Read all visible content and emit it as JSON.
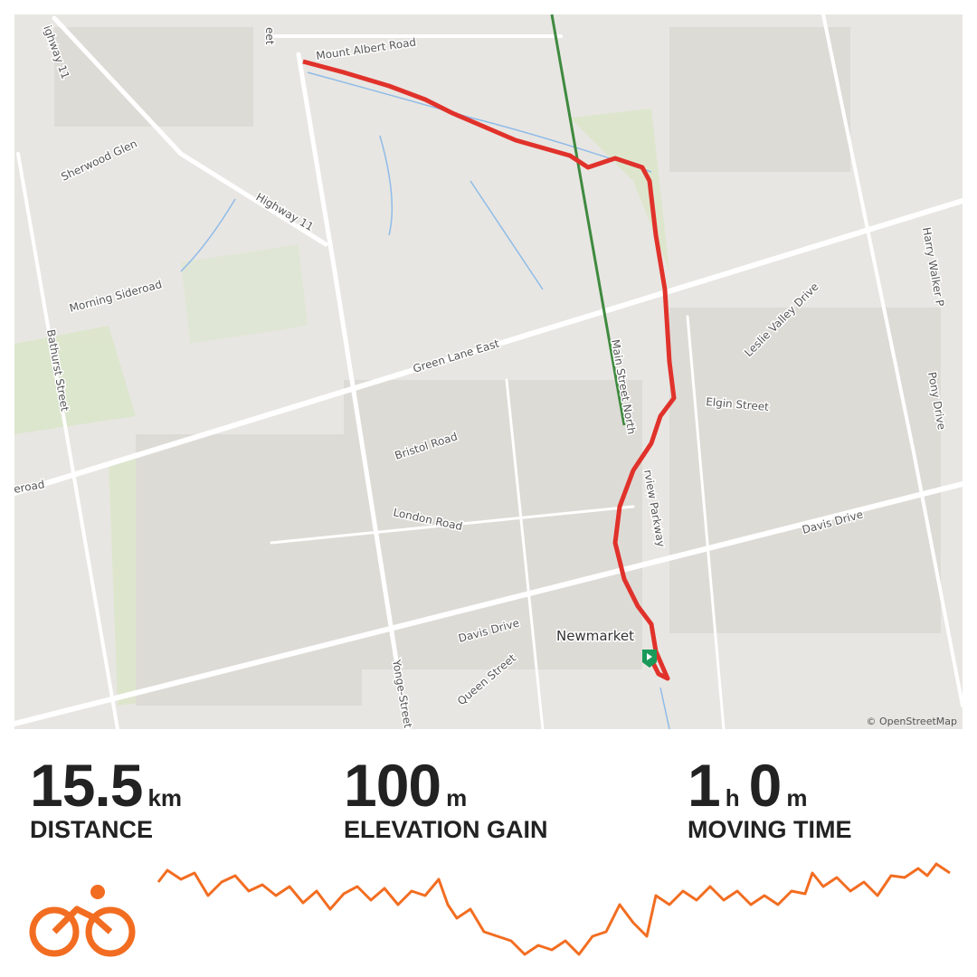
{
  "map": {
    "labels": [
      "Mount Albert Road",
      "ighway 11",
      "eet",
      "Sherwood Glen",
      "Highway 11",
      "Morning Sideroad",
      "Bathurst Street",
      "Green Lane East",
      "Main Street North",
      "Leslie Valley Drive",
      "Elgin Street",
      "Harry Walker P",
      "Pony Drive",
      "Bristol Road",
      "eroad",
      "London Road",
      "rview Parkway",
      "Davis Drive",
      "Davis Drive",
      "Queen Street",
      "Yonge-Street"
    ],
    "place": "Newmarket",
    "attribution": "© OpenStreetMap"
  },
  "stats": [
    {
      "value": "15.5",
      "unit": "km",
      "label": "DISTANCE"
    },
    {
      "value": "100",
      "unit": "m",
      "label": "ELEVATION GAIN"
    },
    {
      "value": "1",
      "unit": "h",
      "value2": "0",
      "unit2": "m",
      "label": "MOVING TIME"
    }
  ]
}
